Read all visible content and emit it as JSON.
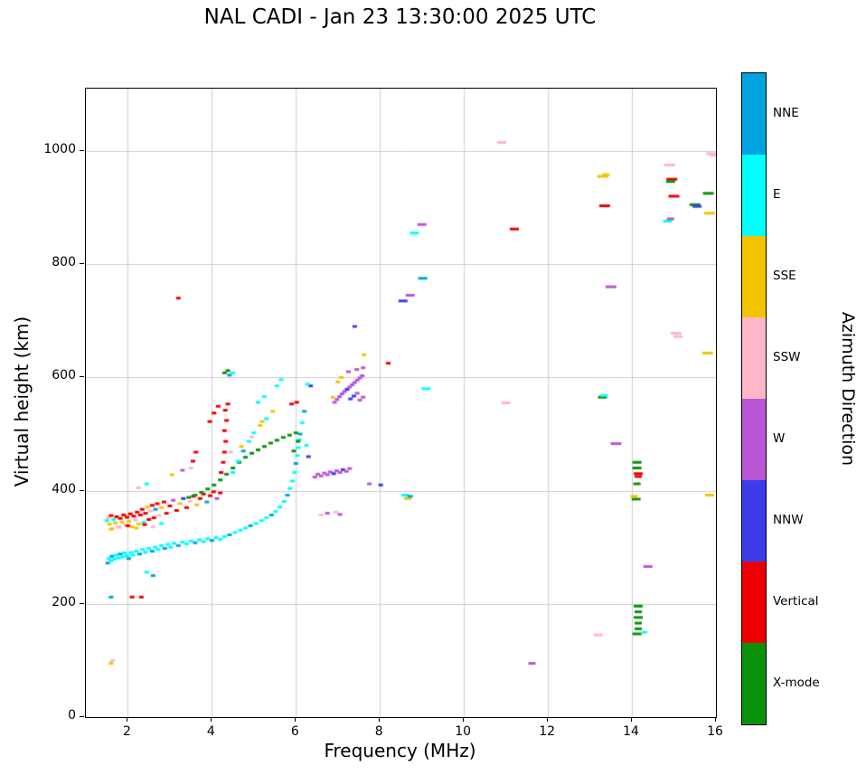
{
  "chart_data": {
    "type": "scatter",
    "title": "NAL CADI - Jan 23 13:30:00 2025 UTC",
    "xlabel": "Frequency (MHz)",
    "ylabel": "Virtual height (km)",
    "legend_title": "Azimuth Direction",
    "xlim": [
      1,
      16
    ],
    "ylim": [
      0,
      1110
    ],
    "xticks": [
      2,
      4,
      6,
      8,
      10,
      12,
      14,
      16
    ],
    "yticks": [
      0,
      200,
      400,
      600,
      800,
      1000
    ],
    "grid": true,
    "grid_color": "#cccccc",
    "directions": [
      {
        "key": "NNE",
        "label": "NNE",
        "color": "#00A3E0"
      },
      {
        "key": "E",
        "label": "E",
        "color": "#00FFFF"
      },
      {
        "key": "SSE",
        "label": "SSE",
        "color": "#F2C400"
      },
      {
        "key": "SSW",
        "label": "SSW",
        "color": "#FFB6C8"
      },
      {
        "key": "W",
        "label": "W",
        "color": "#BA55D3"
      },
      {
        "key": "NNW",
        "label": "NNW",
        "color": "#3C3CE8"
      },
      {
        "key": "V",
        "label": "Vertical",
        "color": "#EE0000"
      },
      {
        "key": "X",
        "label": "X-mode",
        "color": "#0A930A"
      }
    ],
    "points": [
      [
        1.52,
        272,
        "NNE"
      ],
      [
        1.55,
        280,
        "E"
      ],
      [
        1.6,
        276,
        "E"
      ],
      [
        1.62,
        284,
        "NNE"
      ],
      [
        1.68,
        279,
        "E"
      ],
      [
        1.72,
        286,
        "E"
      ],
      [
        1.78,
        281,
        "E"
      ],
      [
        1.82,
        288,
        "NNE"
      ],
      [
        1.88,
        283,
        "E"
      ],
      [
        1.92,
        290,
        "E"
      ],
      [
        1.98,
        285,
        "E"
      ],
      [
        2.02,
        280,
        "NNE"
      ],
      [
        2.08,
        291,
        "E"
      ],
      [
        2.12,
        286,
        "E"
      ],
      [
        2.2,
        293,
        "E"
      ],
      [
        2.28,
        288,
        "NNE"
      ],
      [
        2.35,
        296,
        "E"
      ],
      [
        2.42,
        291,
        "E"
      ],
      [
        2.5,
        298,
        "E"
      ],
      [
        2.58,
        293,
        "NNE"
      ],
      [
        2.65,
        300,
        "E"
      ],
      [
        2.72,
        296,
        "E"
      ],
      [
        2.8,
        303,
        "E"
      ],
      [
        2.88,
        298,
        "NNE"
      ],
      [
        2.95,
        305,
        "E"
      ],
      [
        3.02,
        300,
        "E"
      ],
      [
        3.1,
        307,
        "E"
      ],
      [
        3.2,
        303,
        "NNE"
      ],
      [
        3.3,
        309,
        "E"
      ],
      [
        3.4,
        306,
        "E"
      ],
      [
        3.5,
        311,
        "E"
      ],
      [
        3.6,
        308,
        "NNE"
      ],
      [
        3.7,
        313,
        "E"
      ],
      [
        3.8,
        310,
        "E"
      ],
      [
        3.9,
        315,
        "E"
      ],
      [
        4.0,
        312,
        "NNE"
      ],
      [
        4.1,
        317,
        "E"
      ],
      [
        4.2,
        314,
        "E"
      ],
      [
        4.3,
        319,
        "E"
      ],
      [
        4.42,
        322,
        "NNE"
      ],
      [
        4.55,
        326,
        "E"
      ],
      [
        4.68,
        330,
        "E"
      ],
      [
        4.8,
        334,
        "E"
      ],
      [
        4.92,
        338,
        "NNE"
      ],
      [
        5.05,
        342,
        "E"
      ],
      [
        5.18,
        347,
        "E"
      ],
      [
        5.3,
        352,
        "E"
      ],
      [
        5.42,
        357,
        "NNE"
      ],
      [
        5.52,
        363,
        "E"
      ],
      [
        5.62,
        371,
        "E"
      ],
      [
        5.72,
        381,
        "E"
      ],
      [
        5.8,
        392,
        "NNE"
      ],
      [
        5.86,
        404,
        "E"
      ],
      [
        5.92,
        417,
        "E"
      ],
      [
        5.97,
        432,
        "E"
      ],
      [
        6.0,
        448,
        "NNE"
      ],
      [
        6.03,
        462,
        "E"
      ],
      [
        6.06,
        476,
        "E"
      ],
      [
        6.08,
        490,
        "E"
      ],
      [
        6.1,
        500,
        "NNE"
      ],
      [
        2.45,
        256,
        "E"
      ],
      [
        2.6,
        250,
        "NNE"
      ],
      [
        1.6,
        212,
        "NNE"
      ],
      [
        1.5,
        347,
        "E"
      ],
      [
        1.53,
        352,
        "SSW"
      ],
      [
        1.56,
        341,
        "SSE"
      ],
      [
        1.6,
        356,
        "V"
      ],
      [
        1.63,
        333,
        "SSW"
      ],
      [
        1.66,
        349,
        "E"
      ],
      [
        1.7,
        343,
        "SSE"
      ],
      [
        1.73,
        354,
        "V"
      ],
      [
        1.78,
        336,
        "SSW"
      ],
      [
        1.82,
        351,
        "V"
      ],
      [
        1.86,
        344,
        "SSE"
      ],
      [
        1.9,
        357,
        "V"
      ],
      [
        1.94,
        339,
        "SSW"
      ],
      [
        1.98,
        353,
        "V"
      ],
      [
        2.02,
        346,
        "SSE"
      ],
      [
        2.06,
        359,
        "V"
      ],
      [
        2.1,
        336,
        "SSE"
      ],
      [
        2.14,
        355,
        "V"
      ],
      [
        2.18,
        348,
        "SSW"
      ],
      [
        2.22,
        362,
        "V"
      ],
      [
        2.26,
        341,
        "SSE"
      ],
      [
        2.3,
        357,
        "V"
      ],
      [
        2.34,
        367,
        "V"
      ],
      [
        2.38,
        344,
        "E"
      ],
      [
        2.42,
        360,
        "V"
      ],
      [
        2.46,
        371,
        "SSE"
      ],
      [
        2.5,
        349,
        "V"
      ],
      [
        2.54,
        364,
        "SSW"
      ],
      [
        2.58,
        374,
        "V"
      ],
      [
        2.62,
        352,
        "V"
      ],
      [
        2.66,
        367,
        "NNE"
      ],
      [
        2.7,
        377,
        "V"
      ],
      [
        2.74,
        356,
        "SSW"
      ],
      [
        2.8,
        370,
        "SSE"
      ],
      [
        2.86,
        380,
        "V"
      ],
      [
        2.92,
        360,
        "V"
      ],
      [
        3.0,
        373,
        "V"
      ],
      [
        3.08,
        383,
        "W"
      ],
      [
        3.16,
        365,
        "V"
      ],
      [
        3.24,
        377,
        "SSE"
      ],
      [
        3.32,
        386,
        "NNW"
      ],
      [
        3.4,
        370,
        "V"
      ],
      [
        3.48,
        381,
        "SSW"
      ],
      [
        3.56,
        390,
        "V"
      ],
      [
        3.64,
        375,
        "SSE"
      ],
      [
        3.72,
        386,
        "V"
      ],
      [
        3.8,
        394,
        "V"
      ],
      [
        3.88,
        380,
        "NNE"
      ],
      [
        3.96,
        391,
        "V"
      ],
      [
        4.04,
        398,
        "V"
      ],
      [
        4.12,
        386,
        "W"
      ],
      [
        4.2,
        396,
        "V"
      ],
      [
        1.6,
        332,
        "SSE"
      ],
      [
        1.8,
        335,
        "SSW"
      ],
      [
        2.0,
        338,
        "V"
      ],
      [
        2.2,
        334,
        "SSE"
      ],
      [
        2.4,
        340,
        "V"
      ],
      [
        2.6,
        336,
        "SSW"
      ],
      [
        2.8,
        342,
        "E"
      ],
      [
        3.45,
        388,
        "X"
      ],
      [
        3.6,
        392,
        "X"
      ],
      [
        3.75,
        397,
        "X"
      ],
      [
        3.9,
        403,
        "X"
      ],
      [
        4.05,
        410,
        "X"
      ],
      [
        4.2,
        419,
        "X"
      ],
      [
        4.35,
        429,
        "X"
      ],
      [
        4.5,
        440,
        "X"
      ],
      [
        4.65,
        450,
        "X"
      ],
      [
        4.8,
        459,
        "X"
      ],
      [
        4.95,
        466,
        "X"
      ],
      [
        5.1,
        472,
        "X"
      ],
      [
        5.25,
        478,
        "X"
      ],
      [
        5.4,
        484,
        "X"
      ],
      [
        5.55,
        489,
        "X"
      ],
      [
        5.7,
        494,
        "X"
      ],
      [
        5.85,
        498,
        "X"
      ],
      [
        6.0,
        502,
        "X"
      ],
      [
        4.3,
        608,
        "X"
      ],
      [
        4.38,
        612,
        "X"
      ],
      [
        5.95,
        470,
        "X"
      ],
      [
        6.05,
        487,
        "X"
      ],
      [
        4.22,
        432,
        "V"
      ],
      [
        4.27,
        450,
        "V"
      ],
      [
        4.3,
        468,
        "V"
      ],
      [
        4.33,
        487,
        "V"
      ],
      [
        4.3,
        506,
        "V"
      ],
      [
        4.35,
        524,
        "V"
      ],
      [
        4.32,
        542,
        "V"
      ],
      [
        4.38,
        553,
        "V"
      ],
      [
        3.95,
        522,
        "V"
      ],
      [
        4.05,
        537,
        "V"
      ],
      [
        4.15,
        549,
        "V"
      ],
      [
        3.2,
        740,
        "V"
      ],
      [
        5.9,
        553,
        "V"
      ],
      [
        6.02,
        556,
        "V"
      ],
      [
        8.2,
        625,
        "V"
      ],
      [
        4.5,
        432,
        "E"
      ],
      [
        4.62,
        452,
        "E"
      ],
      [
        4.75,
        470,
        "NNE"
      ],
      [
        4.88,
        487,
        "E"
      ],
      [
        5.0,
        502,
        "E"
      ],
      [
        5.15,
        515,
        "SSE"
      ],
      [
        5.3,
        527,
        "E"
      ],
      [
        4.45,
        468,
        "SSW"
      ],
      [
        4.7,
        478,
        "SSE"
      ],
      [
        4.95,
        495,
        "SSW"
      ],
      [
        5.2,
        522,
        "SSE"
      ],
      [
        5.45,
        540,
        "SSE"
      ],
      [
        5.1,
        556,
        "E"
      ],
      [
        5.25,
        566,
        "E"
      ],
      [
        4.42,
        604,
        "NNE"
      ],
      [
        4.5,
        608,
        "E"
      ],
      [
        5.55,
        585,
        "E"
      ],
      [
        5.65,
        596,
        "E"
      ],
      [
        6.15,
        520,
        "E"
      ],
      [
        6.2,
        540,
        "NNE"
      ],
      [
        6.25,
        480,
        "E"
      ],
      [
        6.3,
        460,
        "NNW"
      ],
      [
        6.35,
        585,
        "NNW"
      ],
      [
        6.28,
        588,
        "E"
      ],
      [
        6.6,
        357,
        "SSW"
      ],
      [
        6.75,
        360,
        "W"
      ],
      [
        6.95,
        362,
        "SSW"
      ],
      [
        7.05,
        358,
        "W"
      ],
      [
        6.45,
        424,
        "W"
      ],
      [
        6.52,
        429,
        "W"
      ],
      [
        6.6,
        426,
        "W"
      ],
      [
        6.68,
        431,
        "W"
      ],
      [
        6.75,
        428,
        "W"
      ],
      [
        6.82,
        433,
        "W"
      ],
      [
        6.9,
        430,
        "NNW"
      ],
      [
        6.97,
        435,
        "W"
      ],
      [
        7.05,
        432,
        "W"
      ],
      [
        7.12,
        437,
        "NNW"
      ],
      [
        7.2,
        434,
        "W"
      ],
      [
        7.28,
        439,
        "W"
      ],
      [
        6.92,
        556,
        "W"
      ],
      [
        6.98,
        561,
        "W"
      ],
      [
        7.04,
        566,
        "W"
      ],
      [
        7.1,
        571,
        "W"
      ],
      [
        7.16,
        575,
        "W"
      ],
      [
        7.22,
        579,
        "NNW"
      ],
      [
        7.28,
        583,
        "W"
      ],
      [
        7.34,
        587,
        "W"
      ],
      [
        7.4,
        591,
        "W"
      ],
      [
        7.46,
        595,
        "W"
      ],
      [
        7.52,
        599,
        "W"
      ],
      [
        7.58,
        603,
        "W"
      ],
      [
        7.3,
        562,
        "NNW"
      ],
      [
        7.38,
        567,
        "NNW"
      ],
      [
        7.46,
        572,
        "W"
      ],
      [
        7.25,
        610,
        "W"
      ],
      [
        7.45,
        614,
        "W"
      ],
      [
        7.6,
        617,
        "W"
      ],
      [
        7.52,
        560,
        "W"
      ],
      [
        7.6,
        565,
        "W"
      ],
      [
        6.88,
        565,
        "SSE"
      ],
      [
        7.0,
        592,
        "SSE"
      ],
      [
        7.08,
        600,
        "SSE"
      ],
      [
        7.62,
        640,
        "SSE"
      ],
      [
        7.4,
        690,
        "NNW"
      ],
      [
        7.75,
        412,
        "W"
      ],
      [
        8.02,
        410,
        "NNW"
      ],
      [
        8.55,
        735,
        "NNW",
        10
      ],
      [
        8.72,
        745,
        "W",
        10
      ],
      [
        8.82,
        855,
        "E",
        10
      ],
      [
        9.02,
        775,
        "NNE",
        10
      ],
      [
        9.0,
        870,
        "W",
        10
      ],
      [
        9.1,
        580,
        "E",
        10
      ],
      [
        8.6,
        392,
        "E",
        8
      ],
      [
        8.66,
        386,
        "SSE",
        8
      ],
      [
        8.72,
        390,
        "NNE",
        6
      ],
      [
        10.9,
        1015,
        "SSW",
        10
      ],
      [
        11.0,
        555,
        "SSW",
        10
      ],
      [
        11.2,
        862,
        "V",
        10
      ],
      [
        11.62,
        95,
        "W",
        8
      ],
      [
        13.2,
        145,
        "SSW",
        10
      ],
      [
        13.3,
        955,
        "SSE",
        12
      ],
      [
        13.38,
        958,
        "SSE",
        8
      ],
      [
        13.35,
        903,
        "V",
        12
      ],
      [
        13.5,
        760,
        "W",
        12
      ],
      [
        13.3,
        565,
        "X",
        10
      ],
      [
        13.34,
        568,
        "E",
        8
      ],
      [
        13.62,
        483,
        "W",
        12
      ],
      [
        14.12,
        450,
        "X",
        10
      ],
      [
        14.12,
        440,
        "X",
        10
      ],
      [
        14.15,
        430,
        "V",
        10
      ],
      [
        14.15,
        425,
        "V",
        8
      ],
      [
        14.12,
        412,
        "X",
        8
      ],
      [
        14.1,
        385,
        "X",
        10
      ],
      [
        14.05,
        390,
        "SSE",
        8
      ],
      [
        14.15,
        196,
        "X",
        10
      ],
      [
        14.15,
        186,
        "X",
        8
      ],
      [
        14.15,
        176,
        "X",
        10
      ],
      [
        14.15,
        166,
        "X",
        8
      ],
      [
        14.15,
        156,
        "X",
        8
      ],
      [
        14.12,
        147,
        "X",
        10
      ],
      [
        14.3,
        150,
        "E",
        6
      ],
      [
        14.38,
        266,
        "W",
        10
      ],
      [
        14.85,
        876,
        "E",
        10
      ],
      [
        14.92,
        880,
        "W",
        8
      ],
      [
        14.9,
        975,
        "SSW",
        12
      ],
      [
        14.95,
        950,
        "V",
        12
      ],
      [
        14.92,
        946,
        "X",
        10
      ],
      [
        15.0,
        920,
        "V",
        12
      ],
      [
        15.05,
        678,
        "SSW",
        12
      ],
      [
        15.1,
        672,
        "SSW",
        10
      ],
      [
        15.5,
        905,
        "X",
        12
      ],
      [
        15.55,
        902,
        "NNW",
        10
      ],
      [
        15.8,
        643,
        "SSE",
        12
      ],
      [
        15.85,
        890,
        "SSE",
        12
      ],
      [
        15.82,
        925,
        "X",
        12
      ],
      [
        15.9,
        995,
        "SSW",
        12
      ],
      [
        15.95,
        992,
        "SSW",
        8
      ],
      [
        15.85,
        392,
        "SSE",
        10
      ],
      [
        1.6,
        95,
        "SSE"
      ],
      [
        1.63,
        100,
        "SSW"
      ],
      [
        2.1,
        212,
        "V"
      ],
      [
        2.32,
        212,
        "V"
      ],
      [
        3.05,
        428,
        "SSE"
      ],
      [
        3.3,
        436,
        "W"
      ],
      [
        2.25,
        405,
        "SSW"
      ],
      [
        2.45,
        412,
        "E"
      ],
      [
        3.55,
        452,
        "V"
      ],
      [
        3.62,
        468,
        "V"
      ],
      [
        3.5,
        440,
        "SSW"
      ]
    ]
  }
}
